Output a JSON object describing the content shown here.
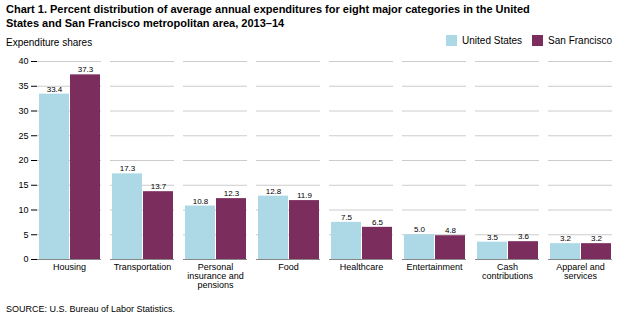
{
  "chart_data": {
    "type": "bar",
    "title": "Chart 1. Percent distribution of average annual expenditures for eight major categories in the United\nStates and San Francisco metropolitan area, 2013–14",
    "ylabel": "Expenditure shares",
    "source": "SOURCE: U.S. Bureau of Labor Statistics.",
    "categories": [
      "Housing",
      "Transportation",
      "Personal\ninsurance and\npensions",
      "Food",
      "Healthcare",
      "Entertainment",
      "Cash\ncontributions",
      "Apparel and\nservices"
    ],
    "series": [
      {
        "name": "United States",
        "color": "#add8e6",
        "values": [
          33.4,
          17.3,
          10.8,
          12.8,
          7.5,
          5.0,
          3.5,
          3.2
        ],
        "value_labels": [
          "33.4",
          "17.3",
          "10.8",
          "12.8",
          "7.5",
          "5.0",
          "3.5",
          "3.2"
        ]
      },
      {
        "name": "San Francisco",
        "color": "#7b2d5e",
        "values": [
          37.3,
          13.7,
          12.3,
          11.9,
          6.5,
          4.8,
          3.6,
          3.2
        ],
        "value_labels": [
          "37.3",
          "13.7",
          "12.3",
          "11.9",
          "6.5",
          "4.8",
          "3.6",
          "3.2"
        ]
      }
    ],
    "ylim": [
      0,
      40
    ],
    "yticks": [
      0,
      5,
      10,
      15,
      20,
      25,
      30,
      35,
      40
    ],
    "grid": true,
    "legend": "upper right",
    "data_labels": true
  }
}
